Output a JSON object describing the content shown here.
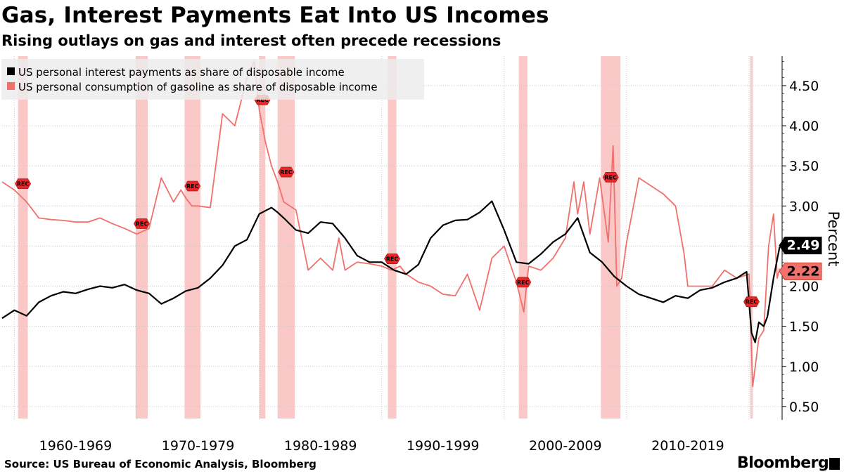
{
  "title": "Gas, Interest Payments Eat Into US Incomes",
  "subtitle": "Rising outlays on gas and interest often precede recessions",
  "source": "Source: US Bureau of Economic Analysis, Bloomberg",
  "brand": "Bloomberg",
  "colors": {
    "interest": "#000000",
    "gasoline": "#f0706c",
    "recession_band": "#fbc2c2",
    "marker": "#e8262a"
  },
  "chart_data": {
    "type": "line",
    "ylabel": "Percent",
    "ylim": [
      0.35,
      4.85
    ],
    "yticks": [
      "0.50",
      "1.00",
      "1.50",
      "2.00",
      "2.50",
      "3.00",
      "3.50",
      "4.00",
      "4.50"
    ],
    "x_range": [
      1959.0,
      2022.7
    ],
    "xtick_labels": [
      "1960-1969",
      "1970-1979",
      "1980-1989",
      "1990-1999",
      "2000-2009",
      "2010-2019"
    ],
    "legend_position": "top-left",
    "recession_marker_label": "REC",
    "recessions": [
      {
        "start": 1960.3,
        "end": 1961.1
      },
      {
        "start": 1969.9,
        "end": 1970.9
      },
      {
        "start": 1973.9,
        "end": 1975.2
      },
      {
        "start": 1980.0,
        "end": 1980.5
      },
      {
        "start": 1981.5,
        "end": 1982.9
      },
      {
        "start": 1990.5,
        "end": 1991.2
      },
      {
        "start": 2001.2,
        "end": 2001.9
      },
      {
        "start": 2007.9,
        "end": 2009.5
      },
      {
        "start": 2020.1,
        "end": 2020.3
      }
    ],
    "series": [
      {
        "name": "US personal interest payments as share of disposable income",
        "end_label": "2.49",
        "x": [
          1959.0,
          1960.0,
          1961.0,
          1962.0,
          1963.0,
          1964.0,
          1965.0,
          1966.0,
          1967.0,
          1968.0,
          1969.0,
          1970.0,
          1971.0,
          1972.0,
          1973.0,
          1974.0,
          1975.0,
          1976.0,
          1977.0,
          1978.0,
          1979.0,
          1980.0,
          1981.0,
          1981.5,
          1982.0,
          1983.0,
          1984.0,
          1985.0,
          1986.0,
          1987.0,
          1988.0,
          1989.0,
          1990.0,
          1991.0,
          1992.0,
          1993.0,
          1994.0,
          1995.0,
          1996.0,
          1997.0,
          1998.0,
          1999.0,
          2000.0,
          2001.0,
          2002.0,
          2003.0,
          2004.0,
          2005.0,
          2006.0,
          2007.0,
          2008.0,
          2009.0,
          2010.0,
          2011.0,
          2012.0,
          2013.0,
          2014.0,
          2015.0,
          2016.0,
          2017.0,
          2018.0,
          2019.0,
          2019.8,
          2020.2,
          2020.5,
          2020.8,
          2021.2,
          2021.5,
          2022.0,
          2022.5
        ],
        "y": [
          1.6,
          1.7,
          1.63,
          1.8,
          1.88,
          1.93,
          1.91,
          1.96,
          2.0,
          1.98,
          2.02,
          1.95,
          1.91,
          1.78,
          1.85,
          1.94,
          1.98,
          2.1,
          2.26,
          2.5,
          2.58,
          2.9,
          2.98,
          2.92,
          2.85,
          2.7,
          2.66,
          2.8,
          2.78,
          2.6,
          2.38,
          2.3,
          2.3,
          2.2,
          2.15,
          2.27,
          2.6,
          2.76,
          2.82,
          2.83,
          2.92,
          3.06,
          2.7,
          2.3,
          2.28,
          2.4,
          2.55,
          2.65,
          2.85,
          2.42,
          2.3,
          2.12,
          2.0,
          1.9,
          1.85,
          1.8,
          1.88,
          1.85,
          1.95,
          1.98,
          2.05,
          2.1,
          2.18,
          1.42,
          1.3,
          1.55,
          1.5,
          1.62,
          2.1,
          2.49
        ]
      },
      {
        "name": "US personal consumption of gasoline as share of disposable income",
        "end_label": "2.22",
        "x": [
          1959.0,
          1960.0,
          1961.0,
          1962.0,
          1963.0,
          1964.0,
          1965.0,
          1966.0,
          1967.0,
          1968.0,
          1969.0,
          1970.0,
          1971.0,
          1972.0,
          1973.0,
          1973.6,
          1974.0,
          1974.5,
          1975.0,
          1976.0,
          1977.0,
          1978.0,
          1979.0,
          1979.6,
          1980.0,
          1980.5,
          1981.0,
          1981.5,
          1982.0,
          1983.0,
          1984.0,
          1985.0,
          1986.0,
          1986.5,
          1987.0,
          1988.0,
          1989.0,
          1990.0,
          1990.8,
          1991.5,
          1992.0,
          1993.0,
          1994.0,
          1995.0,
          1996.0,
          1997.0,
          1998.0,
          1999.0,
          2000.0,
          2001.0,
          2001.6,
          2002.0,
          2003.0,
          2004.0,
          2005.0,
          2005.7,
          2006.0,
          2006.5,
          2007.0,
          2007.8,
          2008.5,
          2008.9,
          2009.2,
          2009.6,
          2010.0,
          2011.0,
          2012.0,
          2013.0,
          2014.0,
          2014.7,
          2015.0,
          2016.0,
          2017.0,
          2018.0,
          2019.0,
          2020.0,
          2020.3,
          2020.8,
          2021.2,
          2021.6,
          2022.0,
          2022.3,
          2022.5
        ],
        "y": [
          3.3,
          3.2,
          3.05,
          2.85,
          2.83,
          2.82,
          2.8,
          2.8,
          2.85,
          2.78,
          2.72,
          2.65,
          2.72,
          3.35,
          3.05,
          3.2,
          3.1,
          3.0,
          3.0,
          2.98,
          4.15,
          4.0,
          4.6,
          4.8,
          4.2,
          3.8,
          3.5,
          3.3,
          3.05,
          2.95,
          2.2,
          2.35,
          2.2,
          2.6,
          2.2,
          2.3,
          2.28,
          2.25,
          2.2,
          2.25,
          2.15,
          2.05,
          2.0,
          1.9,
          1.88,
          2.15,
          1.7,
          2.35,
          2.5,
          2.05,
          1.68,
          2.25,
          2.2,
          2.35,
          2.6,
          3.3,
          2.9,
          3.3,
          2.65,
          3.35,
          2.55,
          3.75,
          2.0,
          2.1,
          2.55,
          3.35,
          3.25,
          3.15,
          3.0,
          2.4,
          2.0,
          2.0,
          2.0,
          2.2,
          2.1,
          2.15,
          0.75,
          1.35,
          1.45,
          2.5,
          2.9,
          2.1,
          2.22
        ]
      }
    ]
  }
}
